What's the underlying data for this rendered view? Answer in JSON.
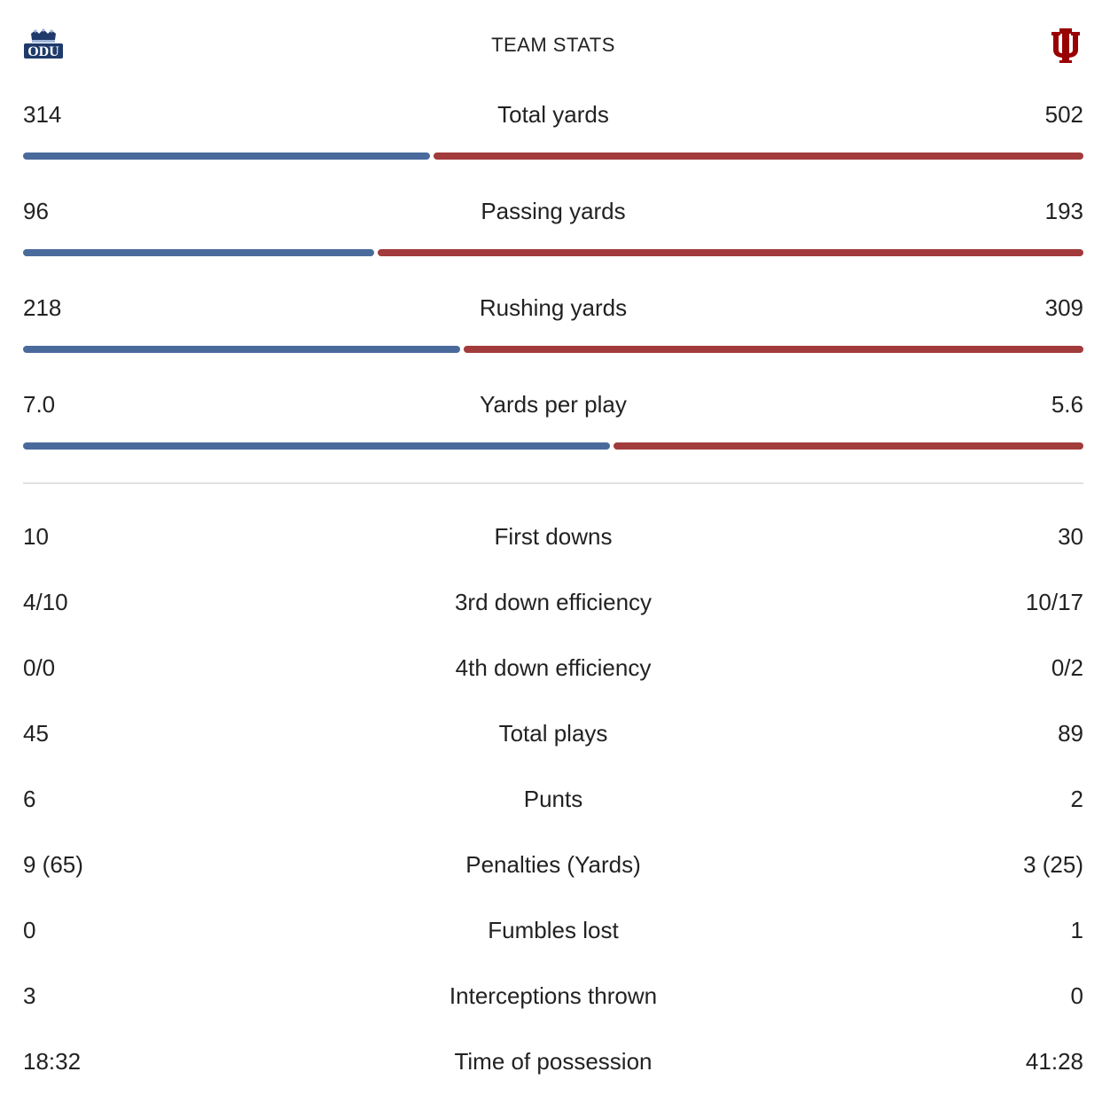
{
  "header": {
    "title": "TEAM STATS",
    "left_logo_icon": "odu-monarchs-logo",
    "right_logo_icon": "indiana-iu-logo"
  },
  "colors": {
    "left_team": "#4a6a9c",
    "right_team": "#a23b3b"
  },
  "bar_stats": [
    {
      "label": "Total yards",
      "left": "314",
      "right": "502",
      "left_share": 0.3848
    },
    {
      "label": "Passing yards",
      "left": "96",
      "right": "193",
      "left_share": 0.3322
    },
    {
      "label": "Rushing yards",
      "left": "218",
      "right": "309",
      "left_share": 0.4137
    },
    {
      "label": "Yards per play",
      "left": "7.0",
      "right": "5.6",
      "left_share": 0.5556
    }
  ],
  "stats": [
    {
      "label": "First downs",
      "left": "10",
      "right": "30"
    },
    {
      "label": "3rd down efficiency",
      "left": "4/10",
      "right": "10/17"
    },
    {
      "label": "4th down efficiency",
      "left": "0/0",
      "right": "0/2"
    },
    {
      "label": "Total plays",
      "left": "45",
      "right": "89"
    },
    {
      "label": "Punts",
      "left": "6",
      "right": "2"
    },
    {
      "label": "Penalties (Yards)",
      "left": "9 (65)",
      "right": "3 (25)"
    },
    {
      "label": "Fumbles lost",
      "left": "0",
      "right": "1"
    },
    {
      "label": "Interceptions thrown",
      "left": "3",
      "right": "0"
    },
    {
      "label": "Time of possession",
      "left": "18:32",
      "right": "41:28"
    }
  ]
}
